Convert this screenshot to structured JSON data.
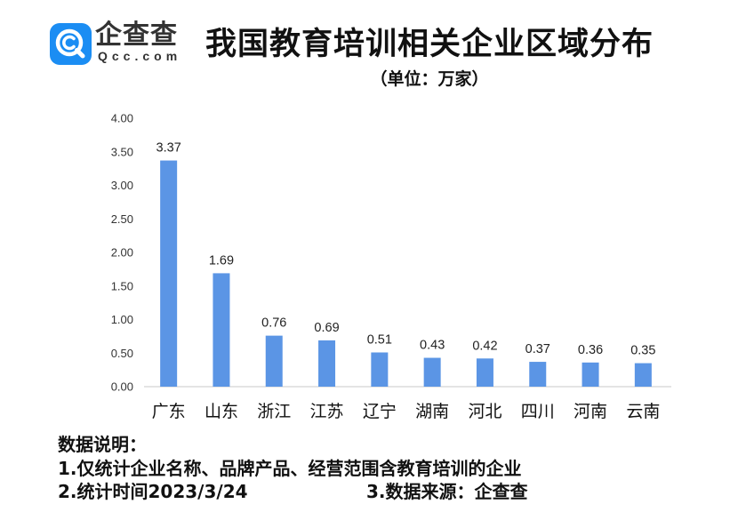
{
  "brand": {
    "name": "企查查",
    "domain": "Qcc.com",
    "color": "#1b8df3",
    "icon": "qcc-logo-icon"
  },
  "chart_data": {
    "type": "bar",
    "title": "我国教育培训相关企业区域分布",
    "subtitle": "（单位：万家）",
    "categories": [
      "广东",
      "山东",
      "浙江",
      "江苏",
      "辽宁",
      "湖南",
      "河北",
      "四川",
      "河南",
      "云南"
    ],
    "values": [
      3.37,
      1.69,
      0.76,
      0.69,
      0.51,
      0.43,
      0.42,
      0.37,
      0.36,
      0.35
    ],
    "ylim": [
      0,
      4
    ],
    "y_tick_labels": [
      "0.00",
      "0.50",
      "1.00",
      "1.50",
      "2.00",
      "2.50",
      "3.00",
      "3.50",
      "4.00"
    ],
    "grid": false,
    "bar_color": "#5b95e5",
    "axis_color": "#c8c8c8"
  },
  "notes": {
    "heading": "数据说明：",
    "items": [
      "1.仅统计企业名称、品牌产品、经营范围含教育培训的企业",
      "2.统计时间2023/3/24",
      "3.数据来源：企查查"
    ]
  }
}
